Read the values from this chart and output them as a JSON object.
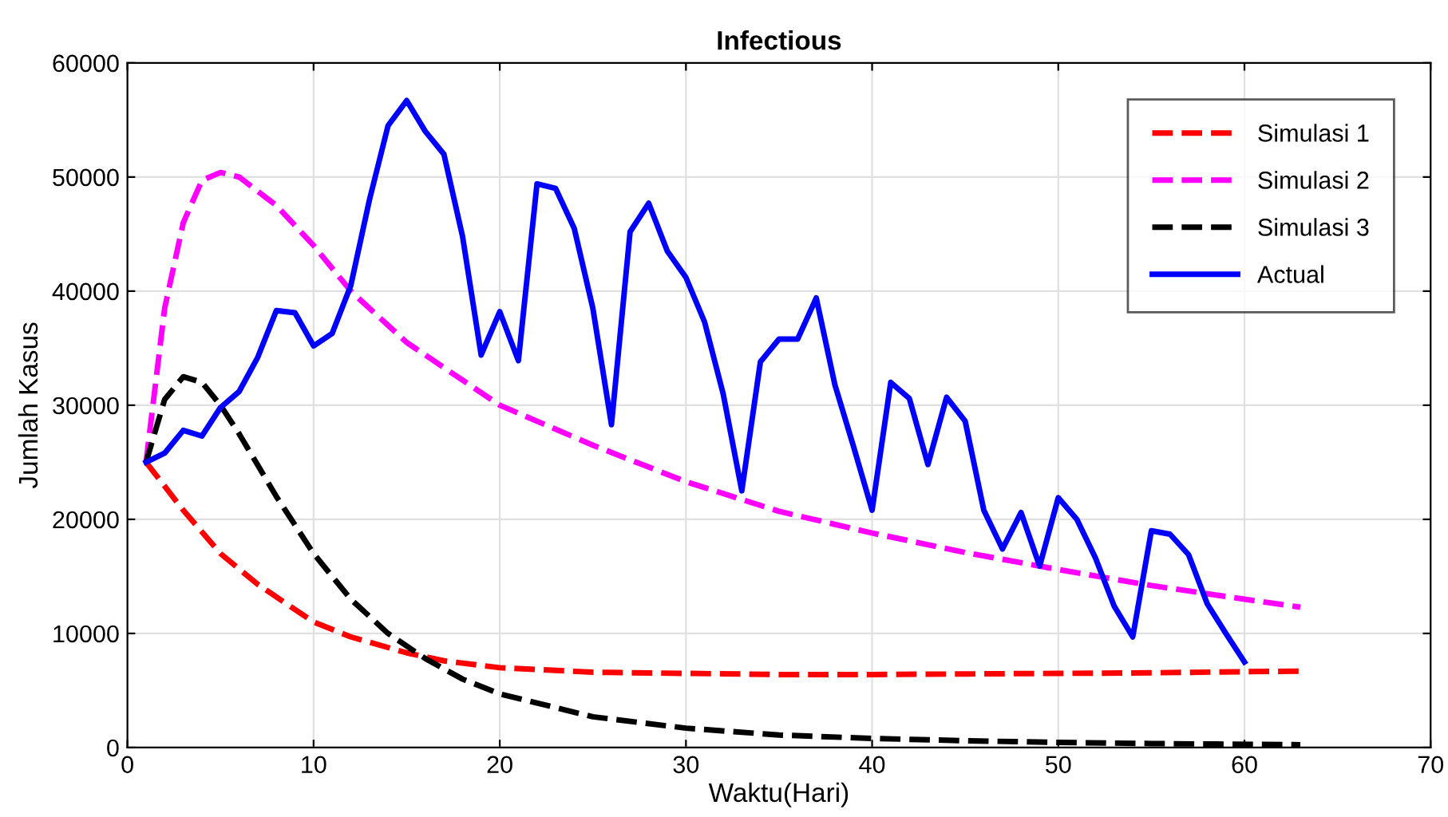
{
  "chart_data": {
    "type": "line",
    "title": "Infectious",
    "xlabel": "Waktu(Hari)",
    "ylabel": "Jumlah Kasus",
    "xlim": [
      0,
      70
    ],
    "ylim": [
      0,
      60000
    ],
    "xticks": [
      0,
      10,
      20,
      30,
      40,
      50,
      60,
      70
    ],
    "yticks": [
      0,
      10000,
      20000,
      30000,
      40000,
      50000,
      60000
    ],
    "grid": true,
    "legend": "top right",
    "marker": "none",
    "series": [
      {
        "name": "Simulasi 1",
        "color": "#ff0000",
        "line_style": "dashed",
        "x": [
          1,
          3,
          5,
          7,
          10,
          12,
          15,
          17,
          20,
          25,
          30,
          35,
          40,
          45,
          50,
          55,
          60,
          63
        ],
        "values": [
          25000,
          20800,
          17000,
          14300,
          11000,
          9700,
          8300,
          7600,
          7000,
          6600,
          6500,
          6400,
          6400,
          6450,
          6500,
          6550,
          6650,
          6700
        ]
      },
      {
        "name": "Simulasi 2",
        "color": "#ff00ff",
        "line_style": "dashed",
        "x": [
          1,
          2,
          3,
          4,
          5,
          6,
          8,
          10,
          12,
          15,
          20,
          25,
          30,
          35,
          40,
          45,
          50,
          55,
          60,
          63
        ],
        "values": [
          25000,
          38500,
          46000,
          49700,
          50400,
          50000,
          47500,
          44000,
          40000,
          35500,
          30000,
          26500,
          23300,
          20700,
          18800,
          17100,
          15600,
          14200,
          13000,
          12300
        ]
      },
      {
        "name": "Simulasi 3",
        "color": "#000000",
        "line_style": "dashed",
        "x": [
          1,
          2,
          3,
          4,
          5,
          6,
          8,
          10,
          12,
          14,
          16,
          18,
          20,
          25,
          30,
          35,
          40,
          45,
          50,
          55,
          63
        ],
        "values": [
          25000,
          30500,
          32500,
          32000,
          30000,
          27500,
          22000,
          17000,
          13000,
          10000,
          7800,
          6000,
          4700,
          2700,
          1700,
          1100,
          800,
          600,
          450,
          350,
          250
        ]
      },
      {
        "name": "Actual",
        "color": "#0000ff",
        "line_style": "solid",
        "x": [
          1,
          2,
          3,
          4,
          5,
          6,
          7,
          8,
          9,
          10,
          11,
          12,
          13,
          14,
          15,
          16,
          17,
          18,
          19,
          20,
          21,
          22,
          23,
          24,
          25,
          26,
          27,
          28,
          29,
          30,
          31,
          32,
          33,
          34,
          35,
          36,
          37,
          38,
          39,
          40,
          41,
          42,
          43,
          44,
          45,
          46,
          47,
          48,
          49,
          50,
          51,
          52,
          53,
          54,
          55,
          56,
          57,
          58,
          59,
          60
        ],
        "values": [
          25000,
          25800,
          27800,
          27300,
          29800,
          31200,
          34200,
          38300,
          38100,
          35200,
          36300,
          40500,
          48000,
          54500,
          56700,
          54000,
          52000,
          44800,
          34400,
          38200,
          33900,
          49400,
          49000,
          45500,
          38500,
          28300,
          45200,
          47700,
          43500,
          41200,
          37300,
          31000,
          22500,
          33800,
          35800,
          35800,
          39400,
          31800,
          26400,
          20800,
          32000,
          30600,
          24800,
          30700,
          28600,
          20800,
          17400,
          20600,
          15900,
          21900,
          20000,
          16600,
          12400,
          9700,
          19000,
          18700,
          16900,
          12600,
          10000,
          7500
        ]
      }
    ]
  }
}
